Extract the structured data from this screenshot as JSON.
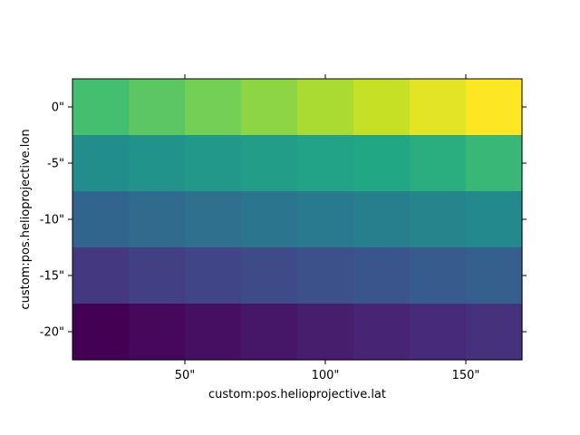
{
  "chart_data": {
    "type": "heatmap",
    "title": "",
    "xlabel": "custom:pos.helioprojective.lat",
    "ylabel": "custom:pos.helioprojective.lon",
    "xlim": [
      10,
      170
    ],
    "ylim": [
      -22.5,
      2.5
    ],
    "x_centers": [
      20,
      40,
      60,
      80,
      100,
      120,
      140,
      160
    ],
    "y_centers": [
      0,
      -5,
      -10,
      -15,
      -20
    ],
    "x_ticks": [
      {
        "value": 50,
        "label": "50\""
      },
      {
        "value": 100,
        "label": "100\""
      },
      {
        "value": 150,
        "label": "150\""
      }
    ],
    "y_ticks": [
      {
        "value": 0,
        "label": "0\""
      },
      {
        "value": -5,
        "label": "-5\""
      },
      {
        "value": -10,
        "label": "-10\""
      },
      {
        "value": -15,
        "label": "-15\""
      },
      {
        "value": -20,
        "label": "-20\""
      }
    ],
    "colormap": "viridis",
    "values": [
      [
        32,
        33,
        34,
        35,
        36,
        37,
        38,
        39
      ],
      [
        24,
        25,
        26,
        27,
        28,
        29,
        30,
        31
      ],
      [
        16,
        17,
        18,
        19,
        20,
        21,
        22,
        23
      ],
      [
        8,
        9,
        10,
        11,
        12,
        13,
        14,
        15
      ],
      [
        0,
        1,
        2,
        3,
        4,
        5,
        6,
        7
      ]
    ],
    "vmin": 0,
    "vmax": 39,
    "grid": false,
    "legend": "none"
  }
}
